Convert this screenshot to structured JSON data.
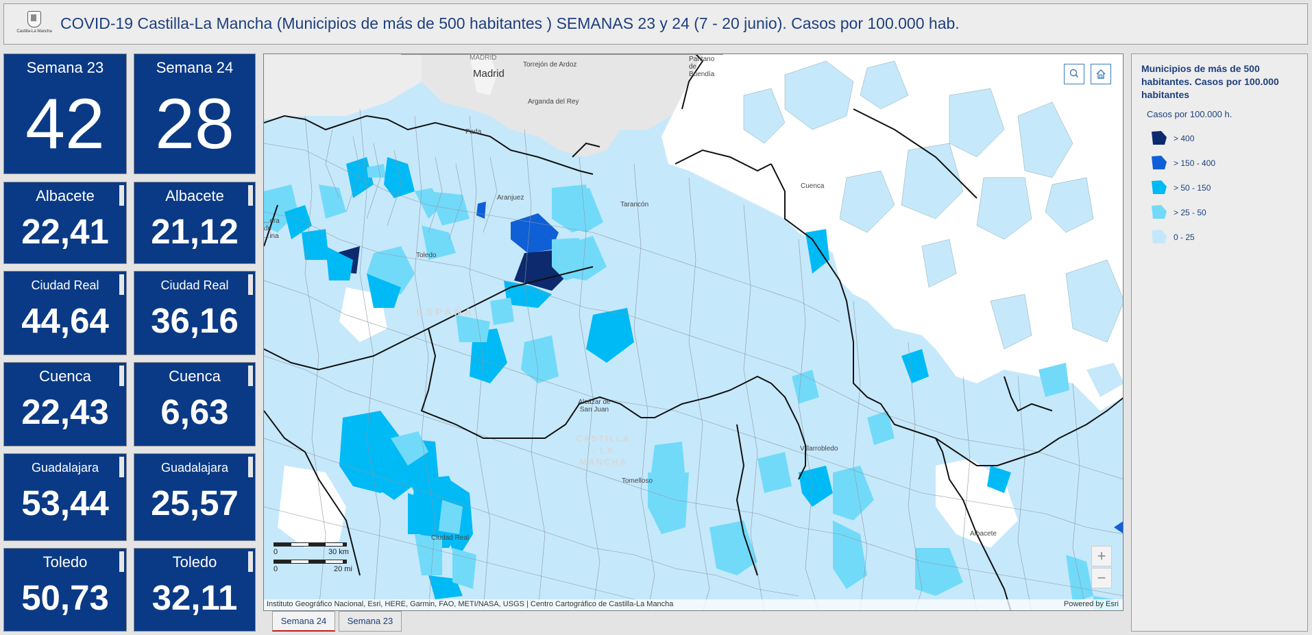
{
  "header": {
    "logo_text": "Castilla-La Mancha",
    "title": "COVID-19 Castilla-La Mancha (Municipios de más de 500 habitantes ) SEMANAS 23 y 24 (7 - 20 junio). Casos por 100.000 hab."
  },
  "weeks": [
    {
      "label": "Semana 23",
      "value": "42"
    },
    {
      "label": "Semana 24",
      "value": "28"
    }
  ],
  "provinces": [
    {
      "name": "Albacete",
      "w23": "22,41",
      "w24": "21,12"
    },
    {
      "name": "Ciudad Real",
      "w23": "44,64",
      "w24": "36,16"
    },
    {
      "name": "Cuenca",
      "w23": "22,43",
      "w24": "6,63"
    },
    {
      "name": "Guadalajara",
      "w23": "53,44",
      "w24": "25,57"
    },
    {
      "name": "Toledo",
      "w23": "50,73",
      "w24": "32,11"
    }
  ],
  "map": {
    "labels": {
      "madrid": "MADRID",
      "madrid_city": "Madrid",
      "torrejon": "Torrejón de Ardoz",
      "arganda": "Arganda del Rey",
      "parla": "Parla",
      "aranjuez": "Aranjuez",
      "tarancon": "Tarancón",
      "cuenca": "Cuenca",
      "toledo": "Toledo",
      "espana": "ESPAÑA",
      "alcazar": "Alcázar de San Juan",
      "castilla": "CASTILLA - LA MANCHA",
      "tomelloso": "Tomelloso",
      "villarrobledo": "Villarrobledo",
      "ciudad_real": "Ciudad Real",
      "albacete": "Albacete",
      "pantano": "Pantano de Buendía",
      "talavera": "...era de ...ina"
    },
    "scale": {
      "zero": "0",
      "km": "30 km",
      "mi": "20 mi"
    },
    "zoom_in": "+",
    "zoom_out": "−",
    "attribution": "Instituto Geográfico Nacional, Esri, HERE, Garmin, FAO, METI/NASA, USGS | Centro Cartográfico de Castilla-La Mancha",
    "powered": "Powered by Esri",
    "icons": [
      "search-icon",
      "home-icon"
    ]
  },
  "tabs": [
    {
      "label": "Semana 24",
      "active": true
    },
    {
      "label": "Semana 23",
      "active": false
    }
  ],
  "legend": {
    "title": "Municipios de más de 500 habitantes. Casos por 100.000 habitantes",
    "subtitle": "Casos por 100.000 h.",
    "items": [
      {
        "label": "> 400",
        "color": "#0d2a6e"
      },
      {
        "label": "> 150 - 400",
        "color": "#0f5fd6"
      },
      {
        "label": "> 50 - 150",
        "color": "#00baf5"
      },
      {
        "label": "> 25 - 50",
        "color": "#72daf9"
      },
      {
        "label": "0 - 25",
        "color": "#c4e8fb"
      }
    ]
  },
  "colors": {
    "card_bg": "#0a3a85",
    "title_text": "#1d3f7d",
    "tab_active_underline": "#c31c1c"
  }
}
